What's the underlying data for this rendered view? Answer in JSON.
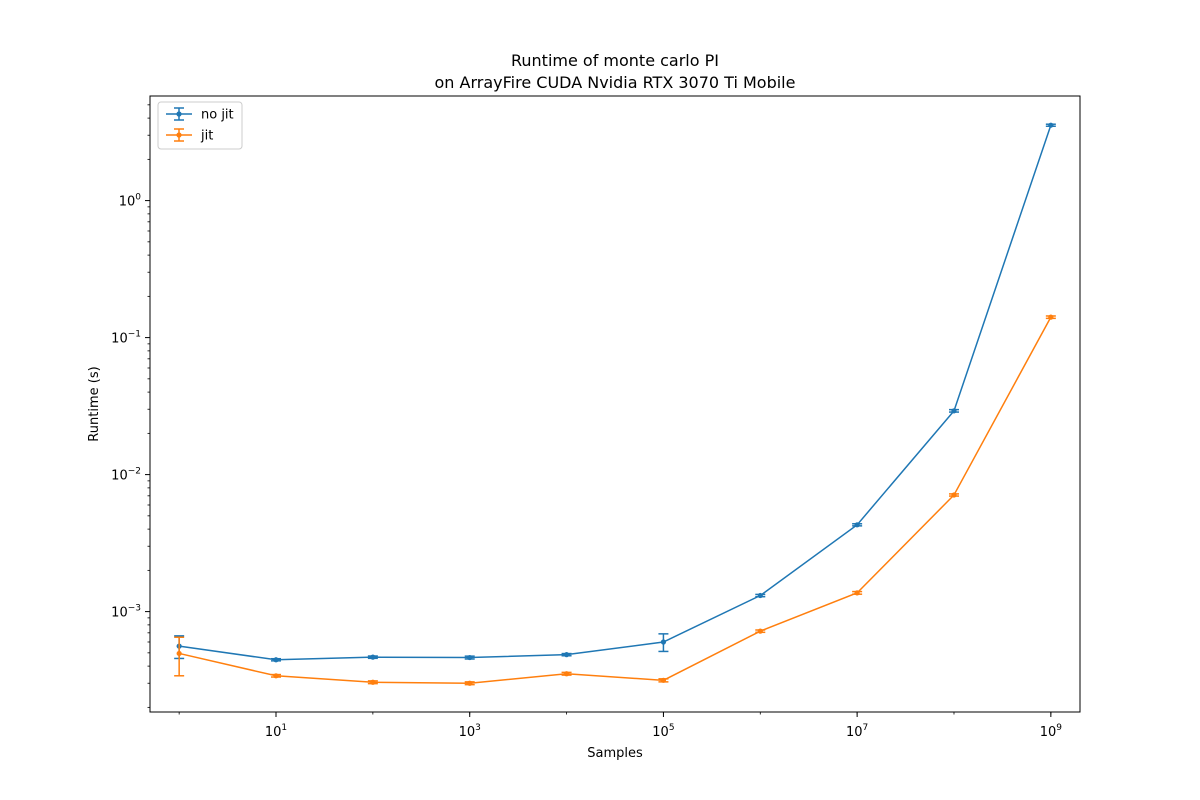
{
  "chart_data": {
    "type": "line",
    "title": "Runtime of monte carlo PI",
    "subtitle": "on ArrayFire CUDA Nvidia RTX 3070 Ti Mobile",
    "xlabel": "Samples",
    "ylabel": "Runtime (s)",
    "xscale": "log",
    "yscale": "log",
    "xlim": [
      0.5,
      2000000000
    ],
    "ylim": [
      0.000185,
      5.8
    ],
    "x_ticks": [
      {
        "value": 10,
        "base": "10",
        "exp": "1"
      },
      {
        "value": 1000,
        "base": "10",
        "exp": "3"
      },
      {
        "value": 100000,
        "base": "10",
        "exp": "5"
      },
      {
        "value": 10000000,
        "base": "10",
        "exp": "7"
      },
      {
        "value": 1000000000,
        "base": "10",
        "exp": "9"
      }
    ],
    "y_ticks": [
      {
        "value": 0.001,
        "base": "10",
        "exp": "−3"
      },
      {
        "value": 0.01,
        "base": "10",
        "exp": "−2"
      },
      {
        "value": 0.1,
        "base": "10",
        "exp": "−1"
      },
      {
        "value": 1,
        "base": "10",
        "exp": "0"
      }
    ],
    "grid": false,
    "legend_position": "top-left",
    "x": [
      1,
      10,
      100,
      1000,
      10000,
      100000,
      1000000,
      10000000,
      100000000,
      1000000000
    ],
    "series": [
      {
        "name": "no jit",
        "color": "#1f77b4",
        "values": [
          0.00056,
          0.000445,
          0.000465,
          0.000462,
          0.000485,
          0.0006,
          0.00131,
          0.0043,
          0.0292,
          3.55
        ],
        "errors": [
          0.000105,
          8e-06,
          9e-06,
          1.1e-05,
          9e-06,
          8.8e-05,
          2.5e-05,
          7.5e-05,
          0.0006,
          0.06
        ]
      },
      {
        "name": "jit",
        "color": "#ff7f0e",
        "values": [
          0.000495,
          0.00034,
          0.000305,
          0.0003,
          0.000352,
          0.000315,
          0.00072,
          0.00137,
          0.0071,
          0.141
        ],
        "errors": [
          0.000155,
          7e-06,
          7e-06,
          7e-06,
          8e-06,
          8e-06,
          1.4e-05,
          3e-05,
          0.00013,
          0.0028
        ]
      }
    ]
  }
}
